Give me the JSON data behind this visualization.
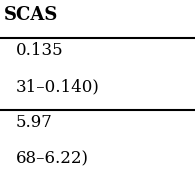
{
  "header": "SCAS",
  "rows": [
    [
      "0.135"
    ],
    [
      "31–0.140)"
    ],
    [
      "5.97"
    ],
    [
      "68–6.22)"
    ]
  ],
  "row_separators": [
    0,
    2
  ],
  "bg_color": "#ffffff",
  "text_color": "#000000",
  "header_fontsize": 13,
  "cell_fontsize": 12,
  "bold_header": true
}
